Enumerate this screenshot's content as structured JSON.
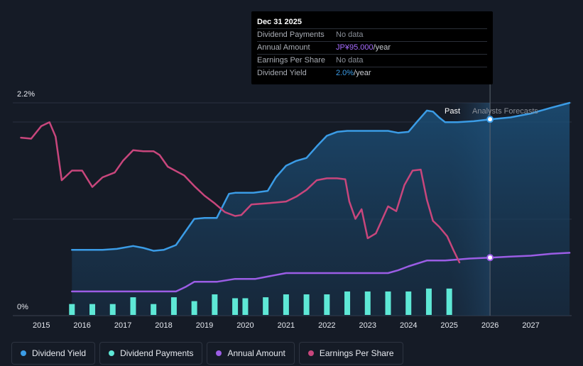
{
  "tooltip": {
    "date": "Dec 31 2025",
    "rows": [
      {
        "label": "Dividend Payments",
        "value": "No data"
      },
      {
        "label": "Annual Amount",
        "value": "JP¥95.000",
        "suffix": "/year"
      },
      {
        "label": "Earnings Per Share",
        "value": "No data"
      },
      {
        "label": "Dividend Yield",
        "value": "2.0%",
        "suffix": "/year"
      }
    ]
  },
  "colors": {
    "dividend_yield": "#3b9ce6",
    "dividend_payments": "#5ee8d6",
    "annual_amount": "#9b5de5",
    "eps": "#c8467c"
  },
  "legend": [
    {
      "label": "Dividend Yield",
      "color": "#3b9ce6"
    },
    {
      "label": "Dividend Payments",
      "color": "#5ee8d6"
    },
    {
      "label": "Annual Amount",
      "color": "#9b5de5"
    },
    {
      "label": "Earnings Per Share",
      "color": "#c8467c"
    }
  ],
  "chart_data": {
    "type": "line",
    "ylabel_top": "2.2%",
    "ylabel_bottom": "0%",
    "ylim": [
      0,
      2.2
    ],
    "xlim": [
      2014.3,
      2028.0
    ],
    "x_ticks": [
      "2015",
      "2016",
      "2017",
      "2018",
      "2019",
      "2020",
      "2021",
      "2022",
      "2023",
      "2024",
      "2025",
      "2026",
      "2027"
    ],
    "past_label": "Past",
    "forecast_label": "Analysts Forecasts",
    "forecast_start": 2025.0,
    "highlight_x": 2026.0,
    "series": [
      {
        "name": "Dividend Yield",
        "key": "dividend_yield",
        "area": true,
        "points": [
          [
            2015.75,
            0.68
          ],
          [
            2016.5,
            0.68
          ],
          [
            2016.85,
            0.69
          ],
          [
            2017.25,
            0.72
          ],
          [
            2017.5,
            0.7
          ],
          [
            2017.75,
            0.67
          ],
          [
            2018.0,
            0.68
          ],
          [
            2018.3,
            0.73
          ],
          [
            2018.55,
            0.88
          ],
          [
            2018.75,
            1.0
          ],
          [
            2019.0,
            1.01
          ],
          [
            2019.3,
            1.01
          ],
          [
            2019.6,
            1.26
          ],
          [
            2019.75,
            1.27
          ],
          [
            2020.2,
            1.27
          ],
          [
            2020.55,
            1.29
          ],
          [
            2020.75,
            1.43
          ],
          [
            2021.0,
            1.55
          ],
          [
            2021.25,
            1.6
          ],
          [
            2021.5,
            1.63
          ],
          [
            2021.75,
            1.75
          ],
          [
            2022.0,
            1.86
          ],
          [
            2022.25,
            1.9
          ],
          [
            2022.5,
            1.91
          ],
          [
            2023.0,
            1.91
          ],
          [
            2023.5,
            1.91
          ],
          [
            2023.75,
            1.89
          ],
          [
            2024.0,
            1.9
          ],
          [
            2024.2,
            2.0
          ],
          [
            2024.45,
            2.12
          ],
          [
            2024.6,
            2.11
          ],
          [
            2024.75,
            2.05
          ],
          [
            2024.9,
            2.0
          ],
          [
            2025.2,
            2.0
          ],
          [
            2025.6,
            2.01
          ],
          [
            2026.0,
            2.03
          ],
          [
            2026.5,
            2.05
          ],
          [
            2027.0,
            2.09
          ],
          [
            2027.5,
            2.15
          ],
          [
            2027.95,
            2.2
          ]
        ]
      },
      {
        "name": "Annual Amount",
        "key": "annual_amount",
        "area": false,
        "points": [
          [
            2015.75,
            0.25
          ],
          [
            2016.5,
            0.25
          ],
          [
            2017.5,
            0.25
          ],
          [
            2018.3,
            0.25
          ],
          [
            2018.55,
            0.3
          ],
          [
            2018.75,
            0.35
          ],
          [
            2019.3,
            0.35
          ],
          [
            2019.75,
            0.38
          ],
          [
            2020.25,
            0.38
          ],
          [
            2020.75,
            0.42
          ],
          [
            2021.0,
            0.44
          ],
          [
            2022.0,
            0.44
          ],
          [
            2023.0,
            0.44
          ],
          [
            2023.5,
            0.44
          ],
          [
            2023.75,
            0.47
          ],
          [
            2024.0,
            0.51
          ],
          [
            2024.45,
            0.57
          ],
          [
            2024.9,
            0.57
          ],
          [
            2025.5,
            0.59
          ],
          [
            2026.0,
            0.6
          ],
          [
            2026.5,
            0.61
          ],
          [
            2027.0,
            0.62
          ],
          [
            2027.5,
            0.64
          ],
          [
            2027.95,
            0.65
          ]
        ]
      },
      {
        "name": "Earnings Per Share",
        "key": "eps",
        "area": false,
        "points": [
          [
            2014.5,
            1.84
          ],
          [
            2014.75,
            1.83
          ],
          [
            2015.0,
            1.96
          ],
          [
            2015.2,
            2.0
          ],
          [
            2015.35,
            1.85
          ],
          [
            2015.5,
            1.4
          ],
          [
            2015.75,
            1.5
          ],
          [
            2016.0,
            1.5
          ],
          [
            2016.25,
            1.33
          ],
          [
            2016.5,
            1.43
          ],
          [
            2016.8,
            1.48
          ],
          [
            2017.0,
            1.6
          ],
          [
            2017.25,
            1.71
          ],
          [
            2017.5,
            1.7
          ],
          [
            2017.75,
            1.7
          ],
          [
            2017.9,
            1.66
          ],
          [
            2018.1,
            1.54
          ],
          [
            2018.5,
            1.45
          ],
          [
            2018.75,
            1.34
          ],
          [
            2019.0,
            1.24
          ],
          [
            2019.25,
            1.16
          ],
          [
            2019.5,
            1.07
          ],
          [
            2019.75,
            1.03
          ],
          [
            2019.9,
            1.04
          ],
          [
            2020.15,
            1.15
          ],
          [
            2020.5,
            1.16
          ],
          [
            2020.75,
            1.17
          ],
          [
            2021.0,
            1.18
          ],
          [
            2021.25,
            1.23
          ],
          [
            2021.5,
            1.3
          ],
          [
            2021.75,
            1.4
          ],
          [
            2022.0,
            1.42
          ],
          [
            2022.25,
            1.42
          ],
          [
            2022.45,
            1.41
          ],
          [
            2022.55,
            1.18
          ],
          [
            2022.7,
            1.0
          ],
          [
            2022.85,
            1.1
          ],
          [
            2023.0,
            0.8
          ],
          [
            2023.2,
            0.85
          ],
          [
            2023.5,
            1.13
          ],
          [
            2023.7,
            1.08
          ],
          [
            2023.9,
            1.35
          ],
          [
            2024.1,
            1.5
          ],
          [
            2024.3,
            1.51
          ],
          [
            2024.45,
            1.2
          ],
          [
            2024.6,
            0.98
          ],
          [
            2024.75,
            0.92
          ],
          [
            2024.95,
            0.82
          ],
          [
            2025.1,
            0.68
          ],
          [
            2025.25,
            0.55
          ]
        ]
      }
    ],
    "bars": {
      "name": "Dividend Payments",
      "key": "dividend_payments",
      "x": [
        2015.75,
        2016.25,
        2016.75,
        2017.25,
        2017.75,
        2018.25,
        2018.75,
        2019.25,
        2019.75,
        2020.0,
        2020.5,
        2021.0,
        2021.5,
        2022.0,
        2022.5,
        2023.0,
        2023.5,
        2024.0,
        2024.5,
        2025.0
      ],
      "values": [
        0.12,
        0.12,
        0.12,
        0.19,
        0.12,
        0.19,
        0.15,
        0.22,
        0.18,
        0.18,
        0.19,
        0.22,
        0.22,
        0.22,
        0.25,
        0.25,
        0.25,
        0.25,
        0.28,
        0.28
      ]
    }
  }
}
